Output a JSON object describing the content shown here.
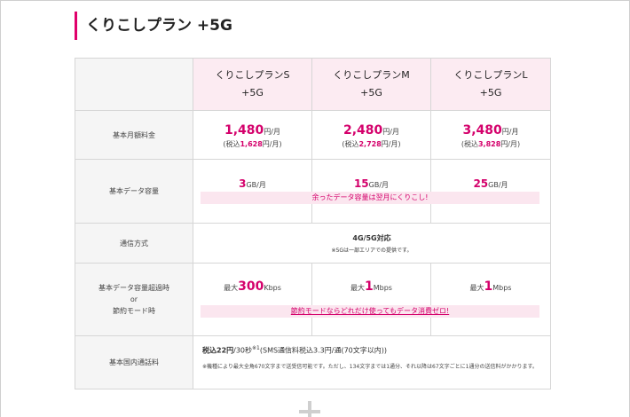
{
  "heading": "くりこしプラン +5G",
  "plans": [
    {
      "name_line1": "くりこしプランS",
      "name_line2": "+5G",
      "price": "1,480",
      "price_unit": "円/月",
      "tax_prefix": "(税込",
      "tax_price": "1,628",
      "tax_suffix": "円/月)",
      "data_amount": "3",
      "data_unit": "GB/月",
      "speed_prefix": "最大",
      "speed_value": "300",
      "speed_unit": "Kbps"
    },
    {
      "name_line1": "くりこしプランM",
      "name_line2": "+5G",
      "price": "2,480",
      "price_unit": "円/月",
      "tax_prefix": "(税込",
      "tax_price": "2,728",
      "tax_suffix": "円/月)",
      "data_amount": "15",
      "data_unit": "GB/月",
      "speed_prefix": "最大",
      "speed_value": "1",
      "speed_unit": "Mbps"
    },
    {
      "name_line1": "くりこしプランL",
      "name_line2": "+5G",
      "price": "3,480",
      "price_unit": "円/月",
      "tax_prefix": "(税込",
      "tax_price": "3,828",
      "tax_suffix": "円/月)",
      "data_amount": "25",
      "data_unit": "GB/月",
      "speed_prefix": "最大",
      "speed_value": "1",
      "speed_unit": "Mbps"
    }
  ],
  "rows": {
    "price": "基本月額料金",
    "data": "基本データ容量",
    "system": "通信方式",
    "over_line1": "基本データ容量超過時",
    "over_line2": "or",
    "over_line3": "節約モード時",
    "call": "基本国内通話料"
  },
  "banners": {
    "data": "余ったデータ容量は翌月にくりこし!",
    "saving": "節約モードならどれだけ使ってもデータ消費ゼロ!"
  },
  "system": {
    "main": "4G/5G対応",
    "note": "※5Gは一部エリアでの提供です。"
  },
  "call": {
    "main_bold": "税込22円",
    "main_rest": "/30秒",
    "sup": "※1",
    "main_tail": "(SMS通信料税込3.3円/通(70文字以内))",
    "note": "※機種により最大全角670文字まで送受信可能です。ただし、134文字までは1通分、それ以降は67文字ごとに1通分の送信料がかかります。"
  },
  "colors": {
    "accent": "#d4006b",
    "header_bg": "#fcebf2",
    "banner_bg": "#fbe6ef"
  },
  "icons": {
    "more": "plus-icon"
  }
}
